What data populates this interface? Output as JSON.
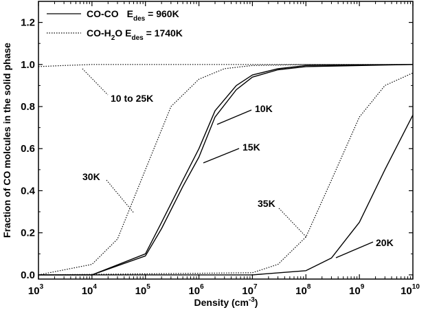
{
  "chart_data": {
    "type": "line",
    "xlabel": "Density (cm",
    "xlabel_sup": "-3",
    "xlabel_end": ")",
    "ylabel": "Fraction of CO molcules in the solid phase",
    "x_scale": "log",
    "xlim": [
      1000,
      10000000000
    ],
    "ylim": [
      -0.02,
      1.3
    ],
    "x_ticks": [
      {
        "base": "10",
        "exp": "3"
      },
      {
        "base": "10",
        "exp": "4"
      },
      {
        "base": "10",
        "exp": "5"
      },
      {
        "base": "10",
        "exp": "6"
      },
      {
        "base": "10",
        "exp": "7"
      },
      {
        "base": "10",
        "exp": "8"
      },
      {
        "base": "10",
        "exp": "9"
      },
      {
        "base": "10",
        "exp": "10"
      }
    ],
    "y_ticks": [
      "0.0",
      "0.2",
      "0.4",
      "0.6",
      "0.8",
      "1.0",
      "1.2"
    ],
    "legend": [
      {
        "pre": "CO-CO",
        "sub1": "",
        "mid": "E",
        "sub2": "des",
        "post": " = 960K",
        "style": "solid"
      },
      {
        "pre": "CO-H",
        "sub1": "2",
        "mid": "O  E",
        "sub2": "des",
        "post": " = 1740K",
        "style": "dotted"
      }
    ],
    "series": [
      {
        "style": "dotted",
        "x": [
          1000,
          3000,
          10000,
          30000,
          100000,
          1000000,
          10000000000
        ],
        "y": [
          0.99,
          0.995,
          1.0,
          1.0,
          1.0,
          1.0,
          1.0
        ]
      },
      {
        "style": "dotted",
        "x": [
          1000,
          10000,
          30000,
          100000,
          300000,
          1000000,
          3000000,
          10000000,
          100000000,
          10000000000
        ],
        "y": [
          0.0,
          0.05,
          0.17,
          0.5,
          0.8,
          0.93,
          0.98,
          0.995,
          1.0,
          1.0
        ]
      },
      {
        "style": "dotted",
        "x": [
          1000,
          10000000,
          30000000,
          100000000,
          300000000,
          1000000000,
          3000000000,
          10000000000
        ],
        "y": [
          0.0,
          0.01,
          0.05,
          0.18,
          0.45,
          0.75,
          0.9,
          0.96
        ]
      },
      {
        "style": "solid",
        "x": [
          1000,
          10000,
          100000,
          200000,
          500000,
          1000000,
          2000000,
          5000000,
          10000000,
          30000000,
          100000000,
          10000000000
        ],
        "y": [
          0.0,
          0.0,
          0.1,
          0.25,
          0.45,
          0.6,
          0.78,
          0.9,
          0.95,
          0.98,
          0.995,
          1.0
        ]
      },
      {
        "style": "solid",
        "x": [
          1000,
          10000,
          100000,
          200000,
          500000,
          1000000,
          2000000,
          5000000,
          10000000,
          30000000,
          100000000,
          10000000000
        ],
        "y": [
          0.0,
          0.0,
          0.09,
          0.22,
          0.42,
          0.56,
          0.75,
          0.88,
          0.94,
          0.975,
          0.99,
          1.0
        ]
      },
      {
        "style": "solid",
        "x": [
          1000,
          10000000,
          100000000,
          300000000,
          1000000000,
          3000000000,
          10000000000
        ],
        "y": [
          0.0,
          0.0,
          0.02,
          0.08,
          0.25,
          0.5,
          0.76
        ]
      }
    ],
    "annotations": [
      {
        "text": "10 to 25K",
        "x": 30000000,
        "y": 0.84
      },
      {
        "text": "30K",
        "x": 20000,
        "y": 0.47
      },
      {
        "text": "10K",
        "x": 6000000,
        "y": 0.79
      },
      {
        "text": "15K",
        "x": 6000000,
        "y": 0.61
      },
      {
        "text": "35K",
        "x": 10000000,
        "y": 0.35
      },
      {
        "text": "20K",
        "x": 3500000000,
        "y": 0.16
      }
    ]
  }
}
